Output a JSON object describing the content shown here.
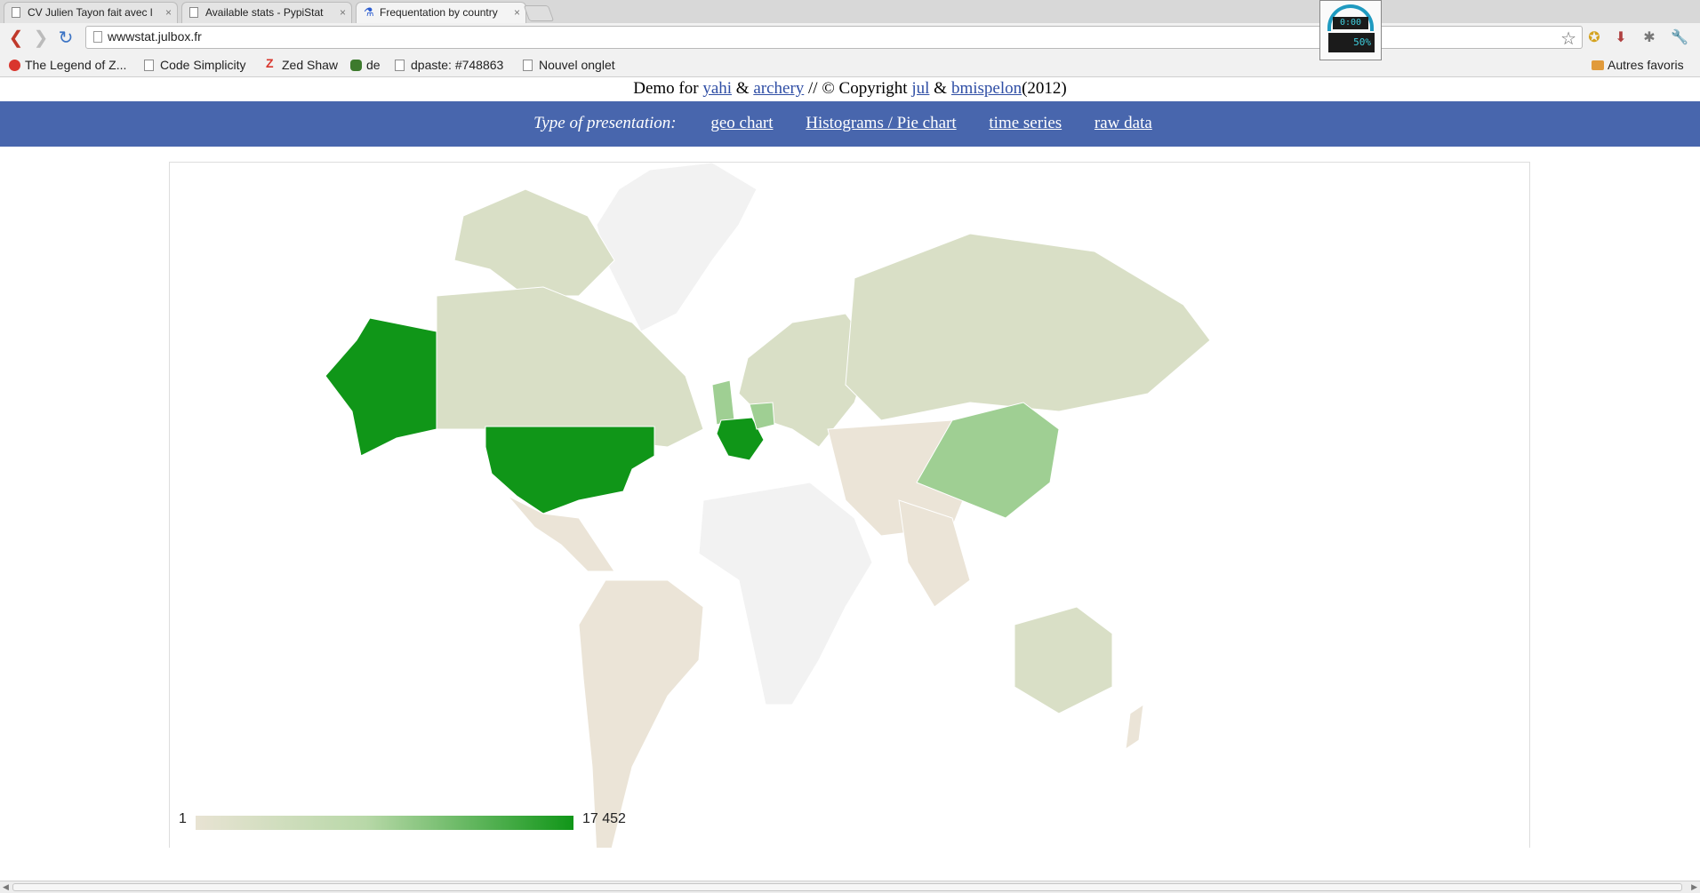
{
  "tabs": [
    {
      "title": "CV Julien Tayon fait avec l",
      "active": false
    },
    {
      "title": "Available stats - PypiStat",
      "active": false
    },
    {
      "title": "Frequentation by country",
      "active": true
    }
  ],
  "toolbar": {
    "url": "wwwstat.julbox.fr",
    "speed_top": "0:00",
    "speed_bottom": "50%"
  },
  "bookmarks": [
    {
      "label": "The Legend of Z...",
      "icon": "zelda-icon"
    },
    {
      "label": "Code Simplicity",
      "icon": "page-icon"
    },
    {
      "label": "Zed Shaw",
      "icon": "zed-icon"
    },
    {
      "label": "de",
      "icon": "de-icon"
    },
    {
      "label": "dpaste: #748863",
      "icon": "page-icon"
    },
    {
      "label": "Nouvel onglet",
      "icon": "page-icon"
    }
  ],
  "other_bookmarks": "Autres favoris",
  "header": {
    "demo_prefix": "Demo for",
    "link1": "yahi",
    "amp1": "&",
    "link2": "archery",
    "copyright": "// © Copyright",
    "link3": "jul",
    "amp2": "&",
    "link4": "bmispelon",
    "year": "(2012)"
  },
  "nav": {
    "label": "Type of presentation:",
    "links": [
      "geo chart",
      "Histograms / Pie chart",
      "time series",
      "raw data"
    ]
  },
  "geo_chart": {
    "legend_min": "1",
    "legend_max": "17 452",
    "colors": {
      "max": "#109618",
      "high": "#9fcf93",
      "mid": "#d9dfc6",
      "low": "#ebe4d7",
      "none": "#f2f2f2"
    }
  }
}
